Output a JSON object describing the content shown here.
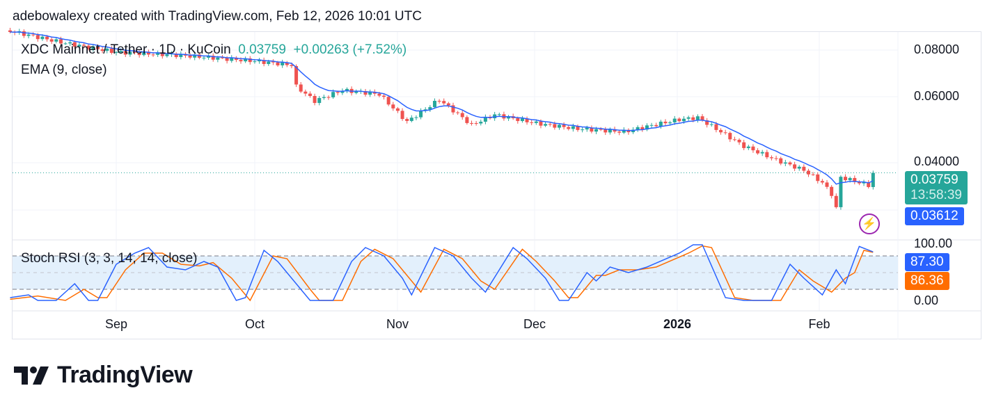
{
  "header": {
    "credit": "adebowalexy created with TradingView.com, Feb 12, 2026 10:01 UTC"
  },
  "legend": {
    "symbol": "XDC Mainnet / Tether · 1D · KuCoin",
    "last": "0.03759",
    "change": "+0.00263 (+7.52%)",
    "ema": "EMA (9, close)",
    "stoch": "Stoch RSI (3, 3, 14, 14, close)"
  },
  "price_tags": {
    "last": "0.03759",
    "countdown": "13:58:39",
    "ema": "0.03612",
    "k": "87.30",
    "d": "86.36"
  },
  "colors": {
    "up": "#26a69a",
    "down": "#ef5350",
    "ema": "#2962ff",
    "k": "#2962ff",
    "d": "#ff6d00",
    "band": "#e3f0fc"
  },
  "logo": {
    "text": "TradingView"
  },
  "chart_data": [
    {
      "type": "candlestick",
      "title": "XDC Mainnet / Tether · 1D · KuCoin",
      "scale": "log",
      "y_ticks": [
        "0.08000",
        "0.06000",
        "0.04000"
      ],
      "x_ticks": [
        "Sep",
        "Oct",
        "Nov",
        "Dec",
        "2026",
        "Feb"
      ],
      "grid": true,
      "close": [
        [
          "2025-08-09",
          0.09
        ],
        [
          "2025-08-20",
          0.084
        ],
        [
          "2025-09-01",
          0.079
        ],
        [
          "2025-09-15",
          0.0775
        ],
        [
          "2025-10-01",
          0.0748
        ],
        [
          "2025-10-09",
          0.073
        ],
        [
          "2025-10-10",
          0.064
        ],
        [
          "2025-10-14",
          0.0585
        ],
        [
          "2025-10-20",
          0.0625
        ],
        [
          "2025-10-28",
          0.061
        ],
        [
          "2025-11-03",
          0.0515
        ],
        [
          "2025-11-10",
          0.059
        ],
        [
          "2025-11-17",
          0.0505
        ],
        [
          "2025-11-22",
          0.0538
        ],
        [
          "2025-12-01",
          0.051
        ],
        [
          "2025-12-10",
          0.0493
        ],
        [
          "2025-12-20",
          0.0484
        ],
        [
          "2025-12-25",
          0.05
        ],
        [
          "2026-01-01",
          0.0522
        ],
        [
          "2026-01-05",
          0.0528
        ],
        [
          "2026-01-10",
          0.0484
        ],
        [
          "2026-01-15",
          0.0443
        ],
        [
          "2026-01-22",
          0.0407
        ],
        [
          "2026-01-28",
          0.0382
        ],
        [
          "2026-02-01",
          0.0354
        ],
        [
          "2026-02-03",
          0.033
        ],
        [
          "2026-02-04",
          0.0302
        ],
        [
          "2026-02-05",
          0.0366
        ],
        [
          "2026-02-08",
          0.0357
        ],
        [
          "2026-02-11",
          0.0348
        ],
        [
          "2026-02-12",
          0.03759
        ]
      ],
      "ema": {
        "name": "EMA (9, close)",
        "last": 0.03612
      }
    },
    {
      "type": "line",
      "title": "Stoch RSI (3, 3, 14, 14, close)",
      "y_ticks": [
        "100.00",
        "0.00"
      ],
      "bands": [
        80,
        50,
        20
      ],
      "ylim": [
        0,
        100
      ],
      "series": [
        {
          "name": "K",
          "points": [
            [
              "2025-08-09",
              5
            ],
            [
              "2025-08-13",
              10
            ],
            [
              "2025-08-15",
              0
            ],
            [
              "2025-08-19",
              0
            ],
            [
              "2025-08-23",
              30
            ],
            [
              "2025-08-26",
              0
            ],
            [
              "2025-08-28",
              0
            ],
            [
              "2025-09-01",
              65
            ],
            [
              "2025-09-05",
              85
            ],
            [
              "2025-09-08",
              95
            ],
            [
              "2025-09-12",
              60
            ],
            [
              "2025-09-16",
              55
            ],
            [
              "2025-09-20",
              70
            ],
            [
              "2025-09-23",
              60
            ],
            [
              "2025-09-27",
              0
            ],
            [
              "2025-09-29",
              5
            ],
            [
              "2025-10-03",
              90
            ],
            [
              "2025-10-06",
              70
            ],
            [
              "2025-10-11",
              20
            ],
            [
              "2025-10-13",
              0
            ],
            [
              "2025-10-18",
              0
            ],
            [
              "2025-10-22",
              70
            ],
            [
              "2025-10-25",
              95
            ],
            [
              "2025-10-29",
              80
            ],
            [
              "2025-11-02",
              40
            ],
            [
              "2025-11-04",
              10
            ],
            [
              "2025-11-09",
              95
            ],
            [
              "2025-11-13",
              80
            ],
            [
              "2025-11-17",
              40
            ],
            [
              "2025-11-20",
              15
            ],
            [
              "2025-11-26",
              95
            ],
            [
              "2025-11-29",
              75
            ],
            [
              "2025-12-03",
              40
            ],
            [
              "2025-12-06",
              0
            ],
            [
              "2025-12-08",
              0
            ],
            [
              "2025-12-12",
              50
            ],
            [
              "2025-12-14",
              35
            ],
            [
              "2025-12-17",
              60
            ],
            [
              "2025-12-21",
              50
            ],
            [
              "2025-12-25",
              60
            ],
            [
              "2026-01-01",
              85
            ],
            [
              "2026-01-04",
              100
            ],
            [
              "2026-01-06",
              100
            ],
            [
              "2026-01-11",
              5
            ],
            [
              "2026-01-15",
              0
            ],
            [
              "2026-01-21",
              0
            ],
            [
              "2026-01-25",
              65
            ],
            [
              "2026-01-28",
              40
            ],
            [
              "2026-02-01",
              10
            ],
            [
              "2026-02-04",
              55
            ],
            [
              "2026-02-06",
              30
            ],
            [
              "2026-02-09",
              97
            ],
            [
              "2026-02-12",
              87.3
            ]
          ]
        },
        {
          "name": "D",
          "points": [
            [
              "2025-08-09",
              2
            ],
            [
              "2025-08-15",
              8
            ],
            [
              "2025-08-21",
              0
            ],
            [
              "2025-08-25",
              20
            ],
            [
              "2025-08-28",
              5
            ],
            [
              "2025-08-30",
              5
            ],
            [
              "2025-09-03",
              55
            ],
            [
              "2025-09-07",
              85
            ],
            [
              "2025-09-11",
              85
            ],
            [
              "2025-09-15",
              65
            ],
            [
              "2025-09-19",
              62
            ],
            [
              "2025-09-22",
              68
            ],
            [
              "2025-09-26",
              40
            ],
            [
              "2025-09-30",
              0
            ],
            [
              "2025-10-05",
              80
            ],
            [
              "2025-10-08",
              75
            ],
            [
              "2025-10-13",
              20
            ],
            [
              "2025-10-15",
              0
            ],
            [
              "2025-10-20",
              0
            ],
            [
              "2025-10-24",
              70
            ],
            [
              "2025-10-27",
              92
            ],
            [
              "2025-10-31",
              75
            ],
            [
              "2025-11-04",
              35
            ],
            [
              "2025-11-06",
              15
            ],
            [
              "2025-11-11",
              92
            ],
            [
              "2025-11-15",
              75
            ],
            [
              "2025-11-19",
              35
            ],
            [
              "2025-11-22",
              20
            ],
            [
              "2025-11-28",
              92
            ],
            [
              "2025-12-01",
              70
            ],
            [
              "2025-12-05",
              35
            ],
            [
              "2025-12-08",
              5
            ],
            [
              "2025-12-10",
              5
            ],
            [
              "2025-12-14",
              45
            ],
            [
              "2025-12-16",
              45
            ],
            [
              "2025-12-19",
              55
            ],
            [
              "2025-12-23",
              55
            ],
            [
              "2025-12-27",
              60
            ],
            [
              "2026-01-03",
              85
            ],
            [
              "2026-01-06",
              98
            ],
            [
              "2026-01-08",
              95
            ],
            [
              "2026-01-13",
              5
            ],
            [
              "2026-01-17",
              0
            ],
            [
              "2026-01-23",
              0
            ],
            [
              "2026-01-27",
              55
            ],
            [
              "2026-01-30",
              35
            ],
            [
              "2026-02-03",
              15
            ],
            [
              "2026-02-06",
              40
            ],
            [
              "2026-02-08",
              50
            ],
            [
              "2026-02-10",
              90
            ],
            [
              "2026-02-12",
              86.36
            ]
          ]
        }
      ]
    }
  ]
}
